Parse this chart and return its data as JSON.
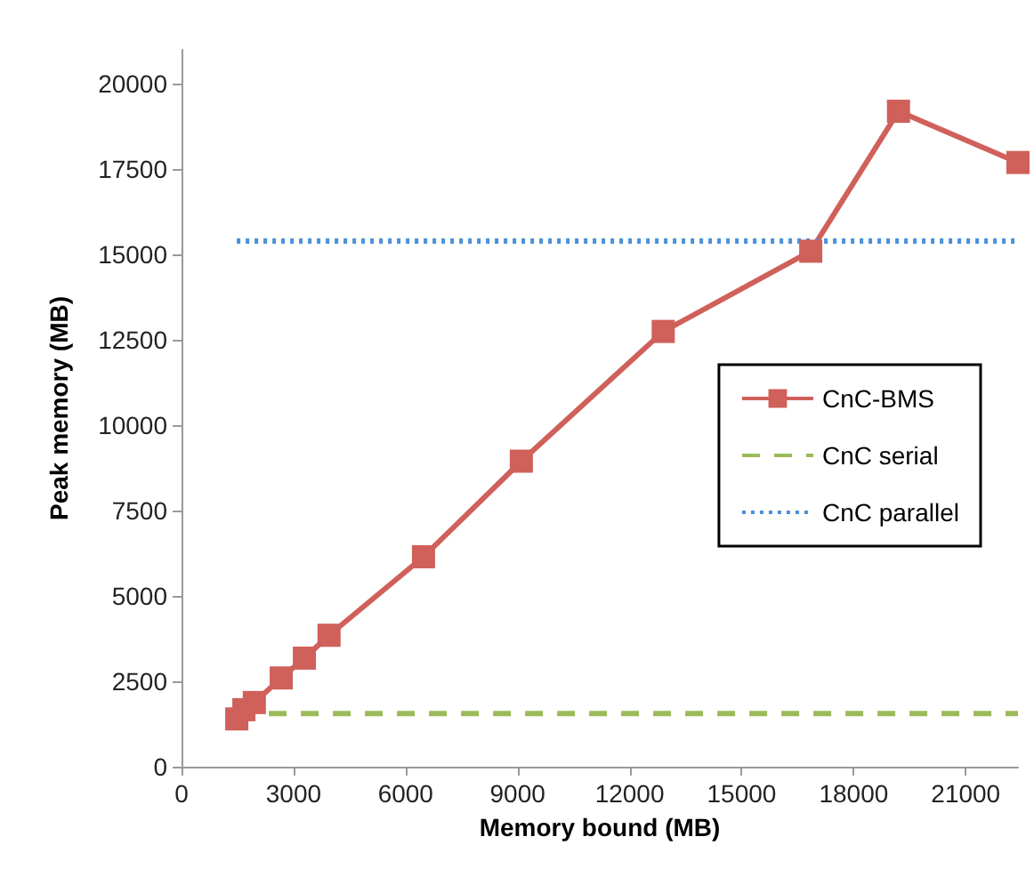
{
  "chart_data": {
    "type": "line",
    "xlabel": "Memory bound (MB)",
    "ylabel": "Peak memory (MB)",
    "xlim": [
      0,
      22400
    ],
    "xticks": [
      0,
      3000,
      6000,
      9000,
      12000,
      15000,
      18000,
      21000
    ],
    "ylim": [
      0,
      21000
    ],
    "yticks": [
      0,
      2500,
      5000,
      7500,
      10000,
      12500,
      15000,
      17500,
      20000
    ],
    "grid": false,
    "legend": "right",
    "series": [
      {
        "name": "CnC-BMS",
        "color": "#d0605a",
        "marker": "square",
        "line_style": "solid",
        "x": [
          1480,
          1670,
          1950,
          2670,
          3290,
          3950,
          6480,
          9100,
          12900,
          16850,
          19200,
          22400
        ],
        "values": [
          1400,
          1670,
          1880,
          2600,
          3180,
          3850,
          6150,
          8950,
          12750,
          15100,
          19200,
          17700
        ]
      },
      {
        "name": "CnC serial",
        "color": "#9bbb59",
        "marker": "none",
        "line_style": "dashed",
        "x": [
          1480,
          22400
        ],
        "values": [
          1560,
          1560
        ]
      },
      {
        "name": "CnC parallel",
        "color": "#4a90d9",
        "marker": "none",
        "line_style": "dotted",
        "x": [
          1480,
          22400
        ],
        "values": [
          15400,
          15400
        ]
      }
    ]
  }
}
